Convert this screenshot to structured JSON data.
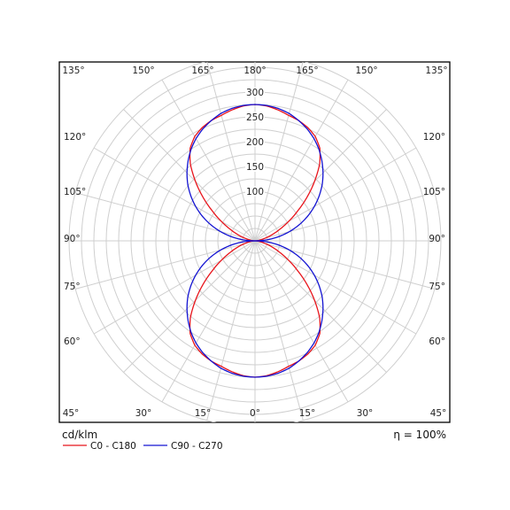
{
  "chart_data": {
    "type": "polar",
    "unit_label": "cd/klm",
    "efficiency_label": "η = 100%",
    "radial_ticks": [
      100,
      150,
      200,
      250,
      300
    ],
    "radial_tick_labels": [
      "100",
      "150",
      "200",
      "250",
      "300"
    ],
    "rmax": 375,
    "angle_labels": {
      "top": [
        "135°",
        "150°",
        "165°",
        "180°",
        "165°",
        "150°",
        "135°"
      ],
      "bottom": [
        "45°",
        "30°",
        "15°",
        "0°",
        "15°",
        "30°",
        "45°"
      ],
      "left": [
        "120°",
        "105°",
        "90°",
        "75°",
        "60°"
      ],
      "right": [
        "120°",
        "105°",
        "90°",
        "75°",
        "60°"
      ]
    },
    "grid": true,
    "legend_position": "bottom-left",
    "series": [
      {
        "name": "C0 - C180",
        "color": "#e8141b",
        "angles_deg": [
          0,
          5,
          10,
          15,
          20,
          25,
          30,
          35,
          40,
          45,
          50,
          55,
          60,
          65,
          70,
          75,
          80,
          85,
          90
        ],
        "values": [
          275,
          273,
          268,
          262,
          258,
          252,
          243,
          228,
          203,
          170,
          137,
          105,
          78,
          55,
          37,
          22,
          11,
          4,
          0
        ]
      },
      {
        "name": "C90 - C270",
        "color": "#1414d2",
        "angles_deg": [
          0,
          5,
          10,
          15,
          20,
          25,
          30,
          35,
          40,
          45,
          50,
          55,
          60,
          65,
          70,
          75,
          80,
          85,
          90
        ],
        "values": [
          275,
          274,
          271,
          266,
          258,
          249,
          238,
          225,
          210,
          194,
          177,
          158,
          138,
          117,
          95,
          72,
          48,
          24,
          0
        ]
      }
    ]
  }
}
